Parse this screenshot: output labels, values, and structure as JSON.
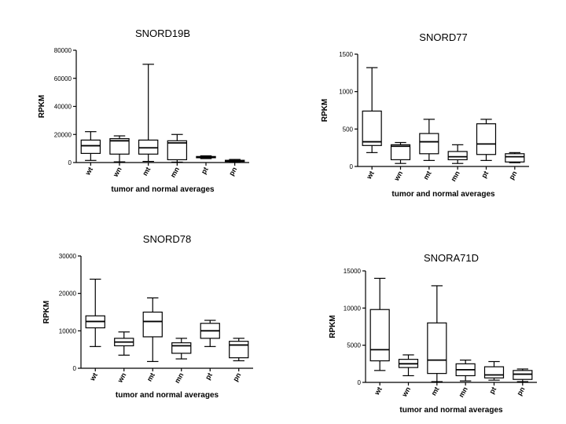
{
  "chart_data": [
    {
      "type": "box",
      "title": "SNORD19B",
      "xlabel": "tumor and normal averages",
      "ylabel": "RPKM",
      "ylim": [
        0,
        80000
      ],
      "yticks": [
        0,
        20000,
        40000,
        60000,
        80000
      ],
      "categories": [
        "wt",
        "wn",
        "mt",
        "mn",
        "pt",
        "pn"
      ],
      "boxes": [
        {
          "min": 1500,
          "q1": 6500,
          "median": 12000,
          "q3": 16000,
          "max": 22000
        },
        {
          "min": 500,
          "q1": 6000,
          "median": 15500,
          "q3": 17000,
          "max": 19000
        },
        {
          "min": 800,
          "q1": 6000,
          "median": 10500,
          "q3": 16000,
          "max": 70000
        },
        {
          "min": 300,
          "q1": 2000,
          "median": 14000,
          "q3": 15500,
          "max": 20000
        },
        {
          "min": 2800,
          "q1": 3400,
          "median": 4000,
          "q3": 4300,
          "max": 4800
        },
        {
          "min": 300,
          "q1": 700,
          "median": 1200,
          "q3": 1600,
          "max": 2200
        }
      ]
    },
    {
      "type": "box",
      "title": "SNORD77",
      "xlabel": "tumor and normal averages",
      "ylabel": "RPKM",
      "ylim": [
        0,
        1500
      ],
      "yticks": [
        0,
        500,
        1000,
        1500
      ],
      "categories": [
        "wt",
        "wn",
        "mt",
        "mn",
        "pt",
        "pn"
      ],
      "boxes": [
        {
          "min": 185,
          "q1": 280,
          "median": 330,
          "q3": 740,
          "max": 1320
        },
        {
          "min": 40,
          "q1": 90,
          "median": 270,
          "q3": 290,
          "max": 320
        },
        {
          "min": 80,
          "q1": 170,
          "median": 330,
          "q3": 440,
          "max": 630
        },
        {
          "min": 40,
          "q1": 90,
          "median": 130,
          "q3": 200,
          "max": 290
        },
        {
          "min": 80,
          "q1": 160,
          "median": 300,
          "q3": 570,
          "max": 630
        },
        {
          "min": 50,
          "q1": 60,
          "median": 130,
          "q3": 170,
          "max": 185
        }
      ]
    },
    {
      "type": "box",
      "title": "SNORD78",
      "xlabel": "tumor and normal averages",
      "ylabel": "RPKM",
      "ylim": [
        0,
        30000
      ],
      "yticks": [
        0,
        10000,
        20000,
        30000
      ],
      "categories": [
        "wt",
        "wn",
        "mt",
        "mn",
        "pt",
        "pn"
      ],
      "boxes": [
        {
          "min": 5800,
          "q1": 10800,
          "median": 12500,
          "q3": 14000,
          "max": 23800
        },
        {
          "min": 3500,
          "q1": 6000,
          "median": 7000,
          "q3": 8000,
          "max": 9700
        },
        {
          "min": 1800,
          "q1": 8400,
          "median": 12500,
          "q3": 15000,
          "max": 18800
        },
        {
          "min": 2500,
          "q1": 4000,
          "median": 6000,
          "q3": 6800,
          "max": 8000
        },
        {
          "min": 5800,
          "q1": 8000,
          "median": 10000,
          "q3": 12000,
          "max": 12800
        },
        {
          "min": 2000,
          "q1": 2800,
          "median": 6200,
          "q3": 7200,
          "max": 8000
        }
      ]
    },
    {
      "type": "box",
      "title": "SNORA71D",
      "xlabel": "tumor and normal averages",
      "ylabel": "RPKM",
      "ylim": [
        0,
        15000
      ],
      "yticks": [
        0,
        5000,
        10000,
        15000
      ],
      "categories": [
        "wt",
        "wn",
        "mt",
        "mn",
        "pt",
        "pn"
      ],
      "boxes": [
        {
          "min": 1600,
          "q1": 2900,
          "median": 4400,
          "q3": 9800,
          "max": 14000
        },
        {
          "min": 900,
          "q1": 2000,
          "median": 2500,
          "q3": 3100,
          "max": 3700
        },
        {
          "min": 100,
          "q1": 1200,
          "median": 3000,
          "q3": 8000,
          "max": 13000
        },
        {
          "min": 200,
          "q1": 900,
          "median": 1700,
          "q3": 2500,
          "max": 3000
        },
        {
          "min": 300,
          "q1": 600,
          "median": 1000,
          "q3": 2100,
          "max": 2800
        },
        {
          "min": 100,
          "q1": 400,
          "median": 1100,
          "q3": 1600,
          "max": 1800
        }
      ]
    }
  ]
}
